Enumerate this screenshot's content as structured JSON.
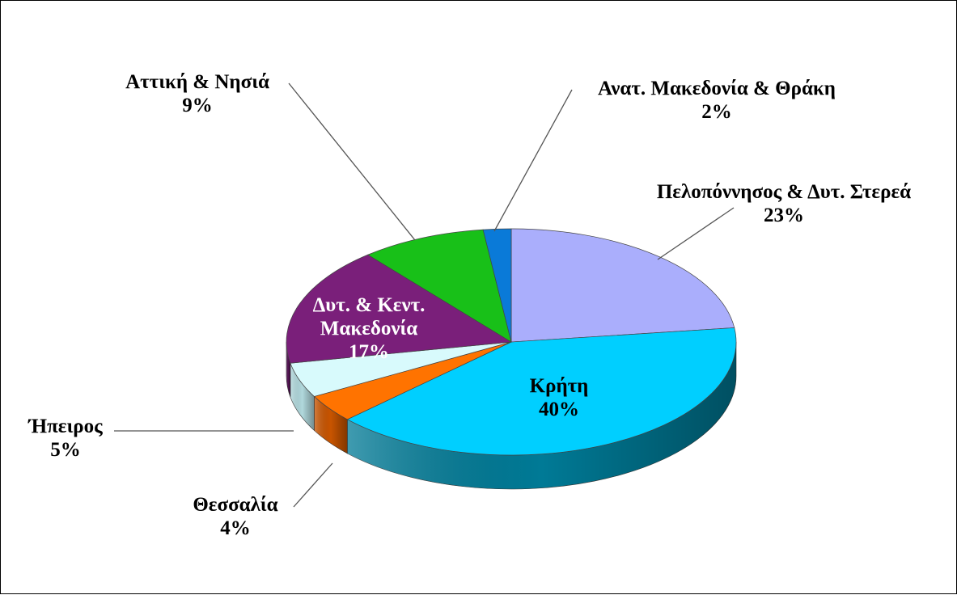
{
  "chart_data": {
    "type": "pie",
    "three_d": true,
    "slices": [
      {
        "label": "Πελοπόννησος & Δυτ. Στερεά",
        "value": 23,
        "value_label": "23%",
        "color": "#aaaefc",
        "side_color": "#7a7ec8"
      },
      {
        "label": "Κρήτη",
        "value": 40,
        "value_label": "40%",
        "color": "#00cfff",
        "side_color": "#007a96"
      },
      {
        "label": "Θεσσαλία",
        "value": 4,
        "value_label": "4%",
        "color": "#ff7300",
        "side_color": "#c85400"
      },
      {
        "label": "Ήπειρος",
        "value": 5,
        "value_label": "5%",
        "color": "#d8fafc",
        "side_color": "#b0d8dc"
      },
      {
        "label": "Δυτ. & Κεντ. Μακεδονία",
        "label_lines": [
          "Δυτ. & Κεντ.",
          "Μακεδονία"
        ],
        "value": 17,
        "value_label": "17%",
        "color": "#7a1f7a",
        "side_color": "#521252"
      },
      {
        "label": "Αττική & Νησιά",
        "value": 9,
        "value_label": "9%",
        "color": "#18c018",
        "side_color": "#0e8a0e"
      },
      {
        "label": "Ανατ. Μακεδονία & Θράκη",
        "value": 2,
        "value_label": "2%",
        "color": "#0a7ad8",
        "side_color": "#0558a0"
      }
    ],
    "legend": "none"
  }
}
